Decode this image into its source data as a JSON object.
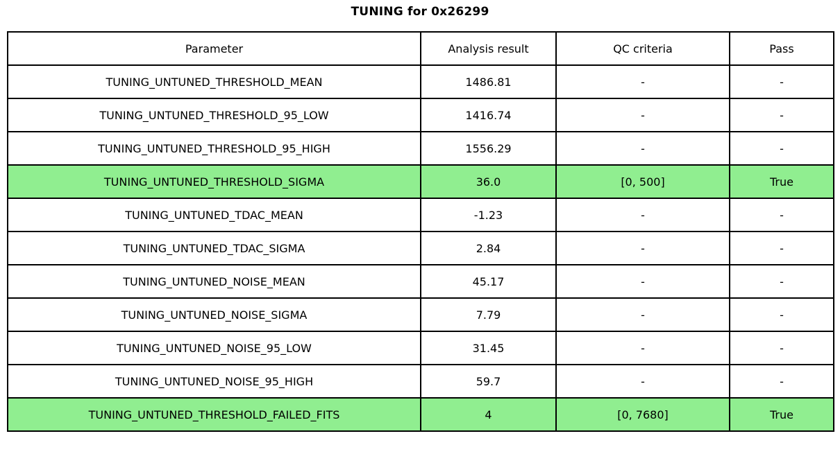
{
  "title": "TUNING for 0x26299",
  "colors": {
    "highlight_green": "#90ee90",
    "border": "#000000",
    "background": "#ffffff",
    "text": "#000000"
  },
  "chart_data": {
    "type": "table",
    "title": "TUNING for 0x26299",
    "columns": [
      "Parameter",
      "Analysis result",
      "QC criteria",
      "Pass"
    ],
    "rows": [
      {
        "parameter": "TUNING_UNTUNED_THRESHOLD_MEAN",
        "result": "1486.81",
        "qc": "-",
        "pass": "-",
        "highlight": false
      },
      {
        "parameter": "TUNING_UNTUNED_THRESHOLD_95_LOW",
        "result": "1416.74",
        "qc": "-",
        "pass": "-",
        "highlight": false
      },
      {
        "parameter": "TUNING_UNTUNED_THRESHOLD_95_HIGH",
        "result": "1556.29",
        "qc": "-",
        "pass": "-",
        "highlight": false
      },
      {
        "parameter": "TUNING_UNTUNED_THRESHOLD_SIGMA",
        "result": "36.0",
        "qc": "[0, 500]",
        "pass": "True",
        "highlight": true
      },
      {
        "parameter": "TUNING_UNTUNED_TDAC_MEAN",
        "result": "-1.23",
        "qc": "-",
        "pass": "-",
        "highlight": false
      },
      {
        "parameter": "TUNING_UNTUNED_TDAC_SIGMA",
        "result": "2.84",
        "qc": "-",
        "pass": "-",
        "highlight": false
      },
      {
        "parameter": "TUNING_UNTUNED_NOISE_MEAN",
        "result": "45.17",
        "qc": "-",
        "pass": "-",
        "highlight": false
      },
      {
        "parameter": "TUNING_UNTUNED_NOISE_SIGMA",
        "result": "7.79",
        "qc": "-",
        "pass": "-",
        "highlight": false
      },
      {
        "parameter": "TUNING_UNTUNED_NOISE_95_LOW",
        "result": "31.45",
        "qc": "-",
        "pass": "-",
        "highlight": false
      },
      {
        "parameter": "TUNING_UNTUNED_NOISE_95_HIGH",
        "result": "59.7",
        "qc": "-",
        "pass": "-",
        "highlight": false
      },
      {
        "parameter": "TUNING_UNTUNED_THRESHOLD_FAILED_FITS",
        "result": "4",
        "qc": "[0, 7680]",
        "pass": "True",
        "highlight": true
      }
    ],
    "highlighted_row_indices": [
      3,
      10
    ],
    "highlight_color": "#90ee90",
    "legend_position": "none",
    "grid": true
  }
}
